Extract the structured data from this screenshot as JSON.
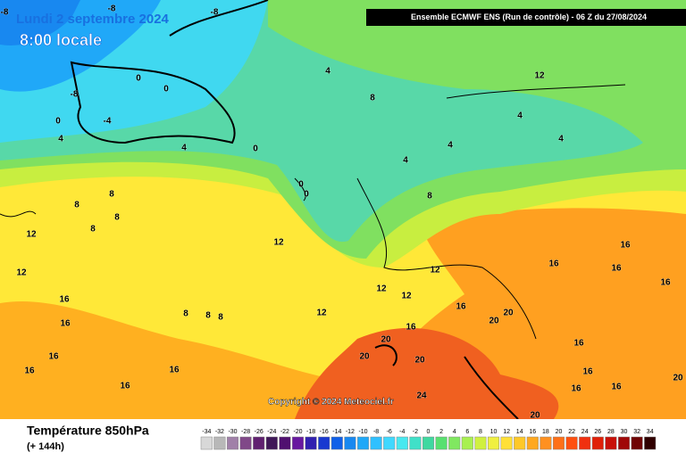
{
  "header": {
    "title": "Lundi 2 septembre 2024",
    "time": "8:00 locale",
    "run": "Ensemble ECMWF ENS  (Run de contrôle)  -  06 Z du 27/08/2024"
  },
  "map": {
    "copyright": "Copyright © 2024 Meteociel.fr",
    "contour_labels": [
      -8,
      -8,
      -8,
      -8,
      0,
      0,
      -4,
      0,
      4,
      4,
      0,
      4,
      8,
      12,
      4,
      4,
      4,
      4,
      0,
      0,
      8,
      8,
      8,
      12,
      12,
      12,
      8,
      8,
      12,
      12,
      12,
      12,
      16,
      16,
      16,
      16,
      20,
      20,
      20,
      20,
      16,
      20,
      16,
      16,
      16,
      16,
      16,
      16,
      24,
      20,
      16,
      16,
      16,
      16,
      20,
      16,
      8,
      8,
      8
    ]
  },
  "footer": {
    "variable": "Température 850hPa",
    "lead": "(+ 144h)"
  },
  "legend": {
    "values": [
      -34,
      -32,
      -30,
      -28,
      -26,
      -24,
      -22,
      -20,
      -18,
      -16,
      -14,
      -12,
      -10,
      -8,
      -6,
      -4,
      -2,
      0,
      2,
      4,
      6,
      8,
      10,
      12,
      14,
      16,
      18,
      20,
      22,
      24,
      26,
      28,
      30,
      32,
      34
    ],
    "colors": [
      "#d8d8d8",
      "#b8b8b8",
      "#a080a8",
      "#804888",
      "#602070",
      "#401858",
      "#501070",
      "#6818a0",
      "#3020b0",
      "#1838d0",
      "#1060e8",
      "#1888f0",
      "#20a8f8",
      "#30c0ff",
      "#40d8ff",
      "#48e8f0",
      "#40e0c8",
      "#40d8a0",
      "#58e070",
      "#80e860",
      "#a8f050",
      "#d0f040",
      "#f0f040",
      "#ffe038",
      "#ffc828",
      "#ffa820",
      "#ff9020",
      "#ff7018",
      "#ff5010",
      "#f03010",
      "#e02008",
      "#c81008",
      "#a00808",
      "#700404",
      "#300000"
    ]
  }
}
